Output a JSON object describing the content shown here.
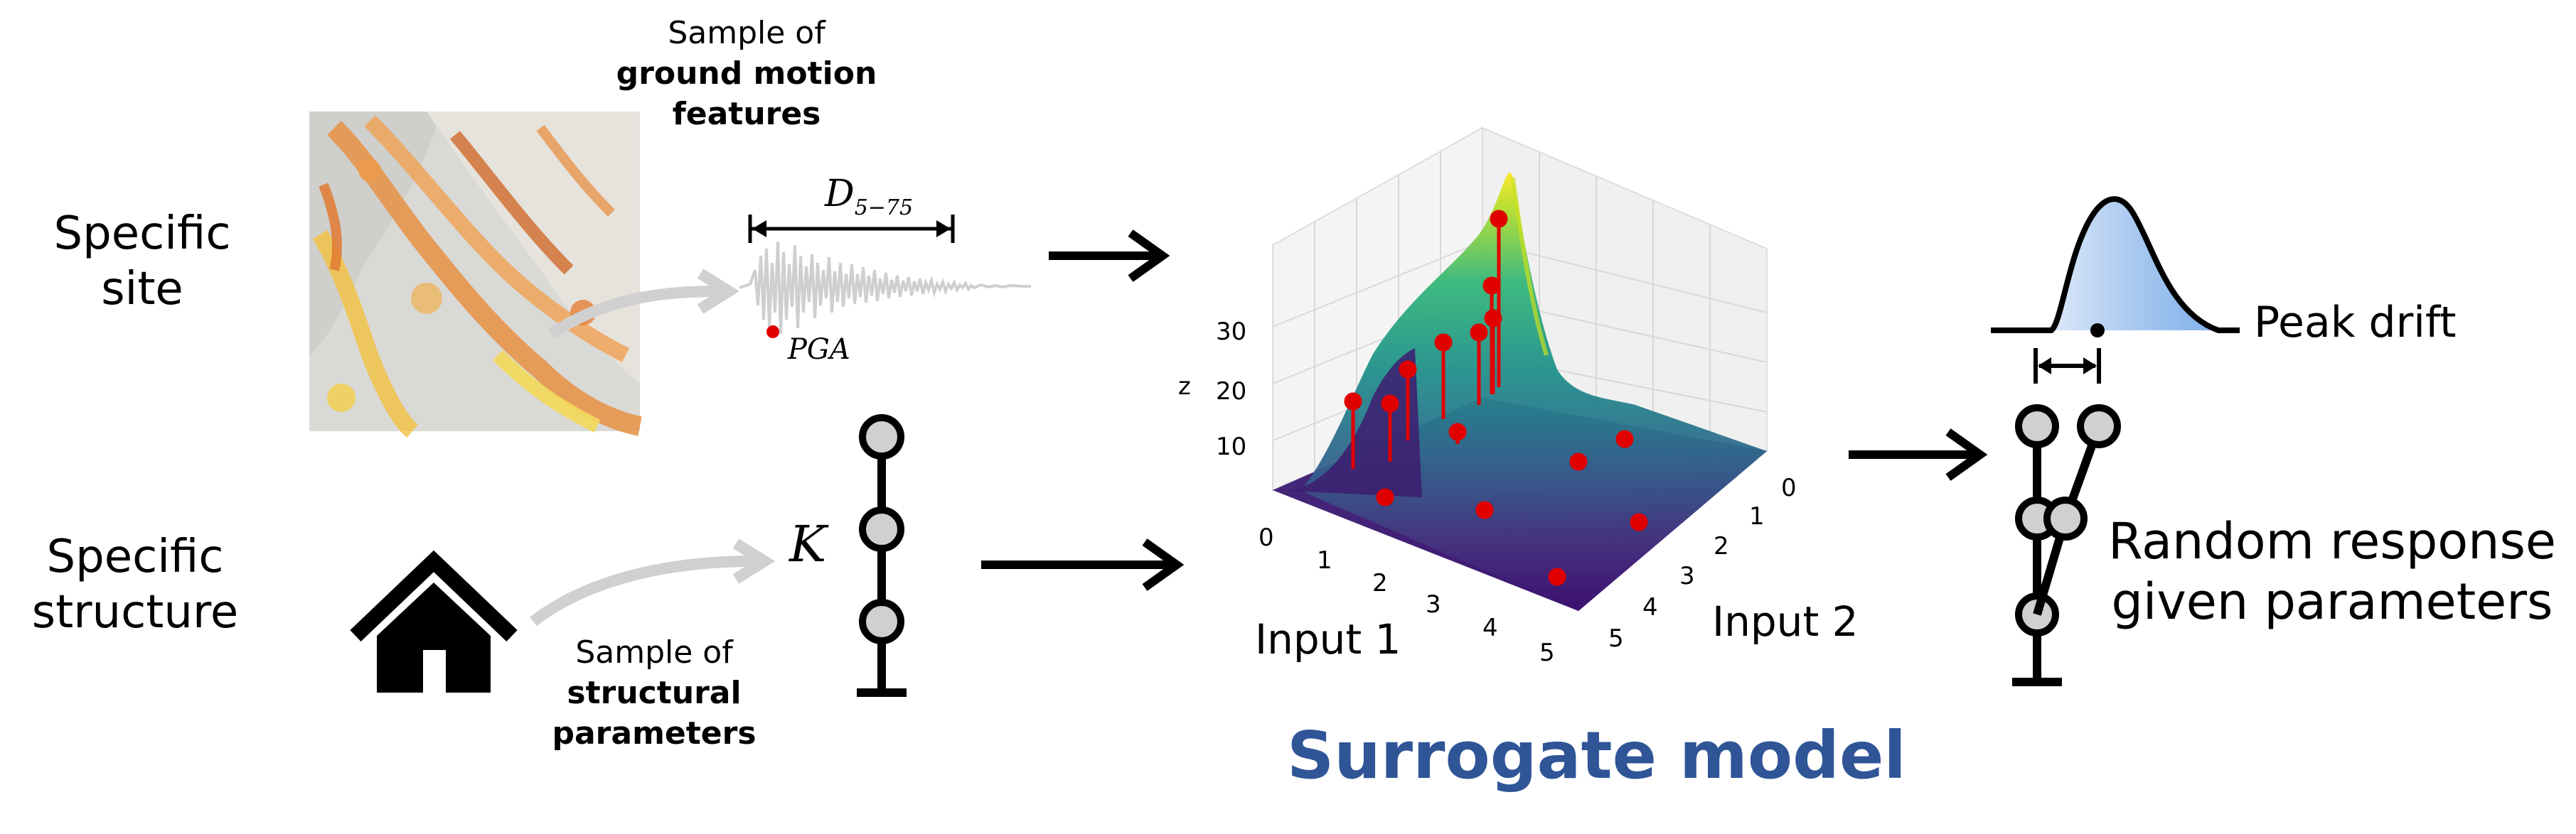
{
  "site_label": [
    "Specific",
    "site"
  ],
  "structure_label": [
    "Specific",
    "structure"
  ],
  "ground_motion_caption": {
    "line1": "Sample of",
    "line2": "ground motion",
    "line3": "features"
  },
  "structural_caption": {
    "line1": "Sample of",
    "line2": "structural",
    "line3": "parameters"
  },
  "duration_label": "D",
  "duration_sub": "5−75",
  "pga_label": "PGA",
  "stiffness_label": "K",
  "peak_drift_label": "Peak drift",
  "response_label": [
    "Random response",
    "given parameters"
  ],
  "surrogate_title": "Surrogate model",
  "surface_plot": {
    "z_axis_label": "z",
    "z_ticks": [
      "10",
      "20",
      "30"
    ],
    "input1_label": "Input 1",
    "input1_ticks": [
      "0",
      "1",
      "2",
      "3",
      "4",
      "5"
    ],
    "input2_label": "Input 2",
    "input2_ticks": [
      "0",
      "1",
      "2",
      "3",
      "4",
      "5"
    ]
  },
  "colors": {
    "title_blue": "#2f5597",
    "sample_red": "#e00000",
    "arrow_grey": "#d0d0d0",
    "distribution_fill": "#b9d3f3"
  },
  "icons": [
    "house-icon",
    "map-image",
    "seismogram",
    "shear-building-model",
    "drift-distribution"
  ]
}
